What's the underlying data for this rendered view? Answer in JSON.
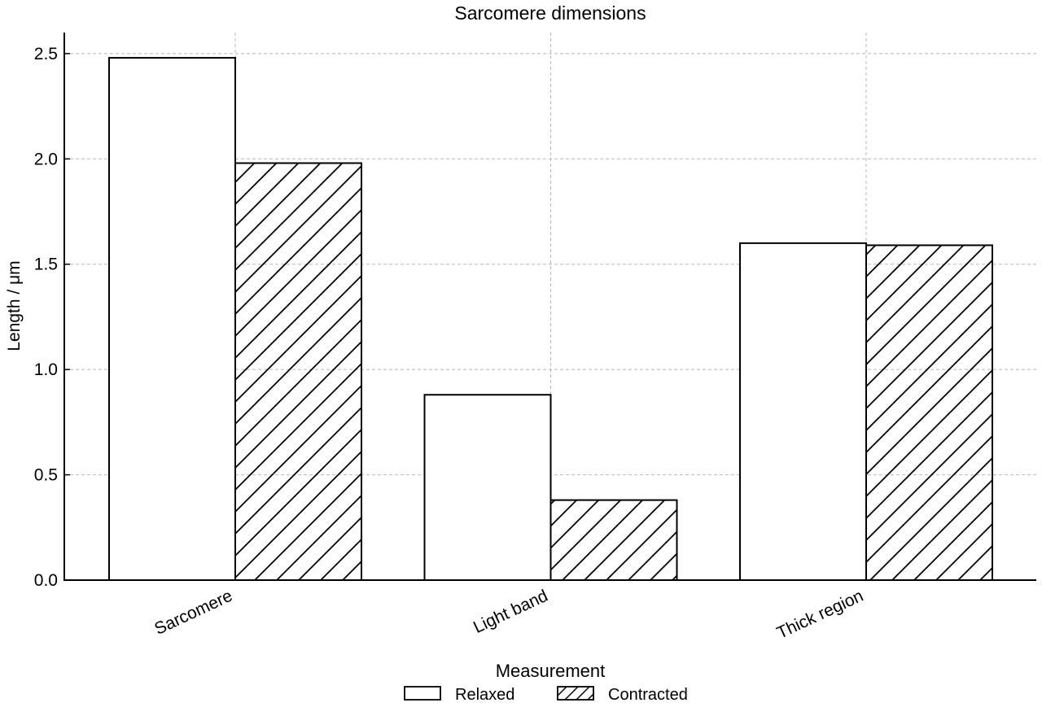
{
  "chart_data": {
    "type": "bar",
    "title": "Sarcomere dimensions",
    "xlabel": "",
    "ylabel": "Length / μm",
    "categories": [
      "Sarcomere",
      "Light band",
      "Thick region"
    ],
    "series": [
      {
        "name": "Relaxed",
        "values": [
          2.48,
          0.88,
          1.6
        ],
        "pattern": "none"
      },
      {
        "name": "Contracted",
        "values": [
          1.98,
          0.38,
          1.59
        ],
        "pattern": "diagonal-hatch"
      }
    ],
    "ylim": [
      0,
      2.6
    ],
    "yticks": [
      0.0,
      0.5,
      1.0,
      1.5,
      2.0,
      2.5
    ],
    "ytick_labels": [
      "0.0",
      "0.5",
      "1.0",
      "1.5",
      "2.0",
      "2.5"
    ],
    "grid": true,
    "legend": {
      "title": "Measurement",
      "placement": "bottom-center"
    },
    "colors": {
      "edge": "#000000",
      "fill": "#ffffff",
      "grid": "#b8b8b8"
    }
  }
}
